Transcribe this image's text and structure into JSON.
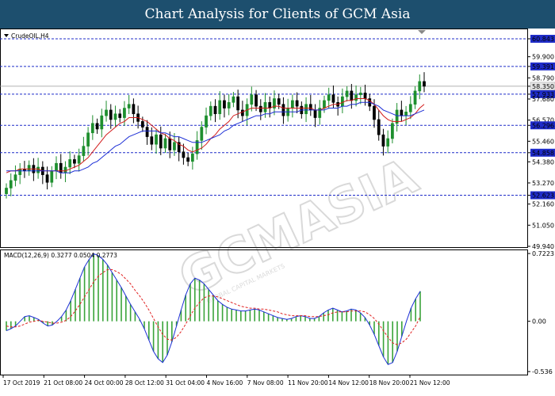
{
  "header": {
    "title": "Chart Analysis for Clients of GCM Asia"
  },
  "symbol_label": "CrudeOIL,H4",
  "macd_label": "MACD(12,26,9) 0.3277 0.0504 0.2773",
  "watermark_text": "GCMASIA",
  "watermark_subtext": "GLOBAL CAPITAL MARKETS",
  "colors": {
    "bull_candle": "#1e8f2e",
    "bear_candle": "#000000",
    "ma_fast": "#d21b1b",
    "ma_slow": "#1d2fd6",
    "level_line": "#1f2cc9",
    "histogram": "#3aa43a",
    "macd_line": "#1d2fd6",
    "signal_line": "#e02020",
    "price_box": "#1f2cc9",
    "header_bg": "#1d4f6e"
  },
  "chart_data": [
    {
      "type": "candlestick",
      "title": "CrudeOIL,H4",
      "y_ticks": [
        "60.843",
        "59.900",
        "59.391",
        "58.790",
        "58.350",
        "57.933",
        "57.680",
        "56.570",
        "56.296",
        "55.460",
        "54.858",
        "54.380",
        "53.270",
        "52.623",
        "52.160",
        "51.050",
        "49.940"
      ],
      "ylim": [
        49.94,
        61.3
      ],
      "x_ticks": [
        "17 Oct 2019",
        "21 Oct 08:00",
        "24 Oct 00:00",
        "28 Oct 12:00",
        "31 Oct 04:00",
        "4 Nov 16:00",
        "7 Nov 08:00",
        "11 Nov 20:00",
        "14 Nov 12:00",
        "18 Nov 20:00",
        "21 Nov 12:00"
      ],
      "current_price": 58.35,
      "horizontal_levels": [
        60.843,
        59.391,
        57.933,
        56.296,
        54.858,
        52.623
      ],
      "series": [
        {
          "name": "Price",
          "values": [
            53.0,
            53.4,
            53.7,
            54.0,
            53.9,
            54.2,
            53.8,
            54.1,
            53.7,
            53.3,
            53.9,
            54.3,
            53.8,
            54.1,
            54.5,
            54.3,
            54.7,
            55.2,
            55.9,
            56.4,
            56.1,
            56.8,
            57.1,
            56.6,
            56.9,
            56.7,
            57.2,
            57.4,
            56.9,
            56.5,
            56.2,
            55.7,
            55.3,
            55.8,
            55.1,
            55.6,
            55.0,
            55.4,
            54.9,
            54.6,
            54.4,
            54.8,
            55.5,
            56.2,
            56.8,
            57.3,
            56.9,
            57.6,
            57.2,
            57.5,
            57.8,
            57.1,
            56.8,
            57.4,
            57.9,
            57.3,
            57.0,
            57.5,
            57.2,
            57.7,
            57.4,
            56.8,
            57.2,
            57.6,
            57.3,
            56.9,
            57.4,
            57.1,
            56.7,
            57.2,
            57.6,
            57.9,
            57.5,
            57.3,
            57.8,
            58.1,
            57.6,
            57.9,
            58.0,
            57.7,
            57.3,
            56.6,
            55.8,
            55.2,
            55.6,
            56.4,
            57.1,
            56.8,
            57.0,
            57.4,
            58.1,
            58.6,
            58.35
          ]
        },
        {
          "name": "MA fast",
          "values": [
            53.8,
            53.9,
            53.9,
            54.0,
            54.0,
            54.0,
            54.0,
            54.0,
            53.9,
            53.9,
            53.9,
            53.9,
            53.9,
            53.9,
            54.0,
            54.1,
            54.2,
            54.4,
            54.6,
            54.9,
            55.2,
            55.5,
            55.8,
            56.0,
            56.2,
            56.4,
            56.5,
            56.7,
            56.7,
            56.7,
            56.6,
            56.5,
            56.3,
            56.1,
            55.9,
            55.8,
            55.6,
            55.5,
            55.3,
            55.2,
            55.0,
            54.9,
            55.0,
            55.1,
            55.3,
            55.6,
            55.8,
            56.1,
            56.3,
            56.5,
            56.8,
            56.9,
            57.0,
            57.1,
            57.2,
            57.2,
            57.2,
            57.2,
            57.2,
            57.3,
            57.3,
            57.2,
            57.2,
            57.2,
            57.2,
            57.2,
            57.2,
            57.2,
            57.1,
            57.1,
            57.2,
            57.3,
            57.4,
            57.4,
            57.5,
            57.6,
            57.6,
            57.7,
            57.7,
            57.7,
            57.6,
            57.4,
            57.1,
            56.8,
            56.6,
            56.5,
            56.5,
            56.5,
            56.6,
            56.7,
            56.9,
            57.2,
            57.4
          ]
        },
        {
          "name": "MA slow",
          "values": [
            53.9,
            53.9,
            53.9,
            53.9,
            53.9,
            53.9,
            53.9,
            53.9,
            53.9,
            53.9,
            53.9,
            53.9,
            53.8,
            53.8,
            53.8,
            53.9,
            53.9,
            54.0,
            54.1,
            54.3,
            54.4,
            54.6,
            54.8,
            55.0,
            55.2,
            55.3,
            55.5,
            55.7,
            55.8,
            55.9,
            56.0,
            56.0,
            56.0,
            56.0,
            55.9,
            55.9,
            55.8,
            55.7,
            55.7,
            55.6,
            55.5,
            55.4,
            55.4,
            55.4,
            55.5,
            55.6,
            55.7,
            55.8,
            56.0,
            56.1,
            56.3,
            56.4,
            56.5,
            56.6,
            56.7,
            56.8,
            56.8,
            56.9,
            56.9,
            57.0,
            57.0,
            57.0,
            57.0,
            57.0,
            57.0,
            57.1,
            57.1,
            57.1,
            57.1,
            57.1,
            57.1,
            57.2,
            57.2,
            57.2,
            57.3,
            57.3,
            57.4,
            57.4,
            57.5,
            57.5,
            57.5,
            57.4,
            57.3,
            57.1,
            57.0,
            56.9,
            56.8,
            56.8,
            56.8,
            56.8,
            56.9,
            57.0,
            57.1
          ]
        }
      ]
    },
    {
      "type": "macd",
      "title": "MACD(12,26,9) 0.3277 0.0504 0.2773",
      "y_ticks": [
        "0.7223",
        "0.00",
        "-0.536"
      ],
      "ylim": [
        -0.56,
        0.74
      ],
      "series": [
        {
          "name": "MACD",
          "values": [
            -0.1,
            -0.08,
            -0.05,
            0.0,
            0.05,
            0.06,
            0.04,
            0.02,
            -0.02,
            -0.05,
            -0.04,
            0.0,
            0.05,
            0.12,
            0.22,
            0.34,
            0.46,
            0.58,
            0.66,
            0.72,
            0.7,
            0.66,
            0.6,
            0.52,
            0.44,
            0.36,
            0.27,
            0.18,
            0.1,
            0.02,
            -0.08,
            -0.2,
            -0.32,
            -0.4,
            -0.44,
            -0.36,
            -0.22,
            -0.05,
            0.12,
            0.28,
            0.4,
            0.46,
            0.44,
            0.4,
            0.34,
            0.28,
            0.22,
            0.18,
            0.15,
            0.13,
            0.12,
            0.11,
            0.11,
            0.12,
            0.13,
            0.12,
            0.1,
            0.08,
            0.06,
            0.04,
            0.03,
            0.02,
            0.03,
            0.05,
            0.06,
            0.05,
            0.03,
            0.03,
            0.05,
            0.09,
            0.12,
            0.14,
            0.12,
            0.1,
            0.11,
            0.13,
            0.12,
            0.09,
            0.04,
            -0.04,
            -0.14,
            -0.26,
            -0.38,
            -0.46,
            -0.44,
            -0.32,
            -0.16,
            0.0,
            0.14,
            0.24,
            0.32
          ]
        },
        {
          "name": "Signal",
          "values": [
            -0.05,
            -0.06,
            -0.06,
            -0.05,
            -0.03,
            -0.01,
            0.0,
            0.01,
            0.0,
            -0.01,
            -0.02,
            -0.02,
            -0.01,
            0.01,
            0.05,
            0.11,
            0.18,
            0.26,
            0.34,
            0.42,
            0.48,
            0.52,
            0.55,
            0.55,
            0.53,
            0.5,
            0.45,
            0.4,
            0.33,
            0.27,
            0.2,
            0.12,
            0.03,
            -0.06,
            -0.14,
            -0.19,
            -0.2,
            -0.17,
            -0.11,
            -0.03,
            0.06,
            0.14,
            0.2,
            0.25,
            0.27,
            0.27,
            0.26,
            0.24,
            0.22,
            0.2,
            0.18,
            0.16,
            0.15,
            0.14,
            0.14,
            0.13,
            0.13,
            0.12,
            0.11,
            0.1,
            0.08,
            0.07,
            0.06,
            0.06,
            0.06,
            0.06,
            0.05,
            0.05,
            0.05,
            0.06,
            0.07,
            0.09,
            0.1,
            0.1,
            0.1,
            0.11,
            0.11,
            0.11,
            0.1,
            0.07,
            0.03,
            -0.03,
            -0.1,
            -0.17,
            -0.23,
            -0.25,
            -0.23,
            -0.19,
            -0.12,
            -0.05,
            0.05
          ]
        }
      ]
    }
  ]
}
